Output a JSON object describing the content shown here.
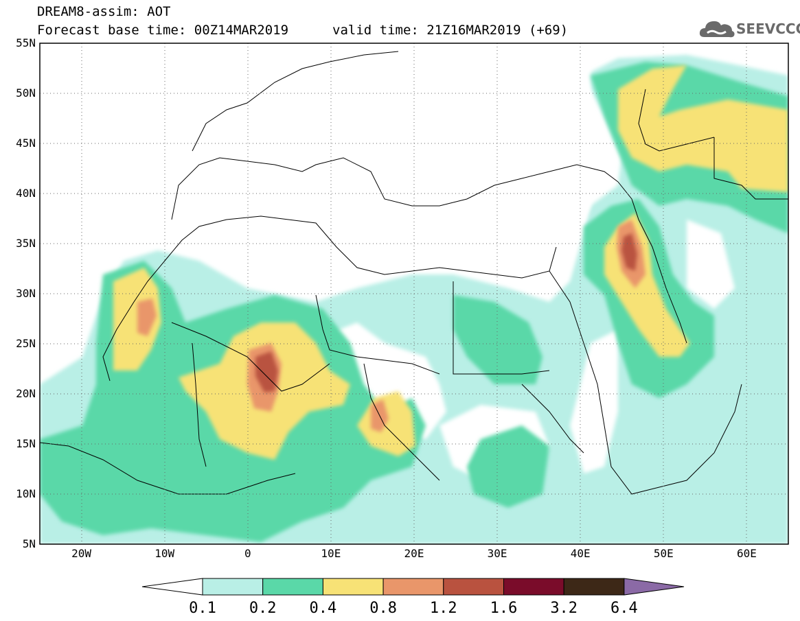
{
  "header": {
    "title": "DREAM8-assim: AOT",
    "base_time": "Forecast base time: 00Z14MAR2019",
    "valid_time": "valid time: 21Z16MAR2019 (+69)"
  },
  "logo": {
    "text": "SEEVCCC",
    "icon": "cloud-logo-icon",
    "color": "#6a6a6a"
  },
  "map": {
    "lat_labels": [
      "55N",
      "50N",
      "45N",
      "40N",
      "35N",
      "30N",
      "25N",
      "20N",
      "15N",
      "10N",
      "5N"
    ],
    "lon_labels": [
      "20W",
      "10W",
      "0",
      "10E",
      "20E",
      "30E",
      "40E",
      "50E",
      "60E"
    ],
    "lon_range": [
      -25,
      65
    ],
    "lat_range": [
      5,
      55
    ]
  },
  "colorbar": {
    "labels": [
      "0.1",
      "0.2",
      "0.4",
      "0.8",
      "1.2",
      "1.6",
      "3.2",
      "6.4"
    ],
    "colors": [
      "#ffffff",
      "#b9efe6",
      "#5ad8a8",
      "#f7e276",
      "#e9966a",
      "#b9523f",
      "#7a0c2a",
      "#3d2817",
      "#8b6aa6"
    ]
  }
}
